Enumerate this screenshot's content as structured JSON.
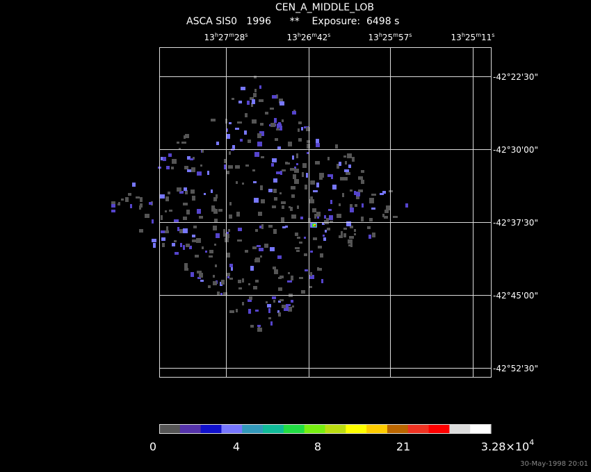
{
  "header": {
    "title": "CEN_A_MIDDLE_LOB",
    "subtitle": "ASCA SIS0   1996      **    Exposure:  6498 s"
  },
  "ra_units": [
    "h",
    "m",
    "s"
  ],
  "ra_labels": [
    {
      "hours": "13",
      "minutes": "27",
      "seconds": "28"
    },
    {
      "hours": "13",
      "minutes": "26",
      "seconds": "42"
    },
    {
      "hours": "13",
      "minutes": "25",
      "seconds": "57"
    },
    {
      "hours": "13",
      "minutes": "25",
      "seconds": "11"
    }
  ],
  "dec_labels": [
    "-42°22'30\"",
    "-42°30'00\"",
    "-42°37'30\"",
    "-42°45'00\"",
    "-42°52'30\""
  ],
  "colorbar": {
    "colors": [
      "#555555",
      "#5533aa",
      "#1111cc",
      "#7777ff",
      "#3399bb",
      "#11bb99",
      "#22dd44",
      "#77ee11",
      "#bbdd11",
      "#ffff00",
      "#ffcc00",
      "#bb6600",
      "#ee3322",
      "#ff0000",
      "#dddddd",
      "#ffffff"
    ],
    "labels": [
      "0",
      "4",
      "8",
      "21"
    ],
    "max_label": {
      "mantissa": "3.28×10",
      "exponent": "4"
    }
  },
  "timestamp": "30-May-1998 20:01"
}
